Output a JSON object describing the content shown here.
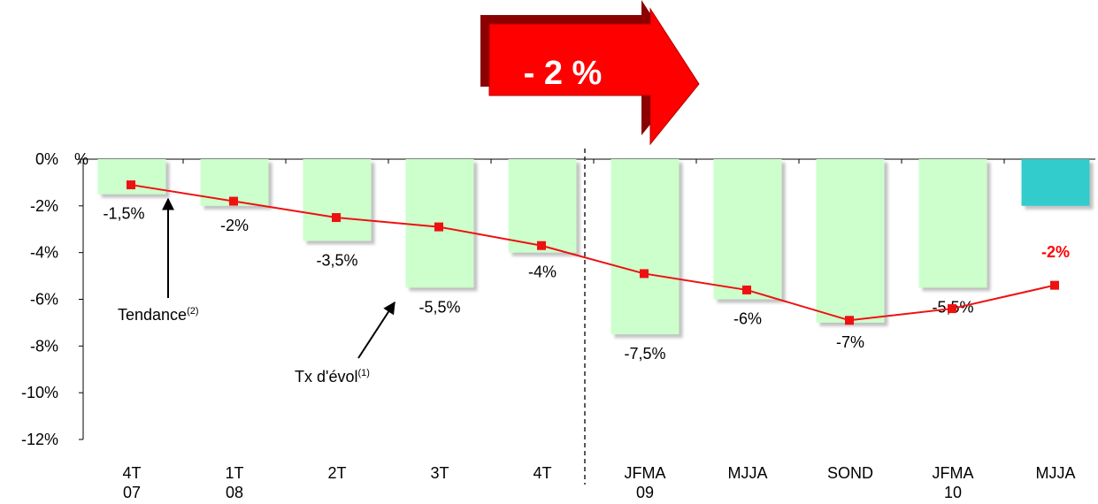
{
  "chart_data": {
    "type": "bar",
    "categories": [
      "4T 07",
      "1T 08",
      "2T",
      "3T",
      "4T",
      "JFMA 09",
      "MJJA",
      "SOND",
      "JFMA 10",
      "MJJA"
    ],
    "category_lines": [
      [
        "4T",
        "07"
      ],
      [
        "1T",
        "08"
      ],
      [
        "2T"
      ],
      [
        "3T"
      ],
      [
        "4T"
      ],
      [
        "JFMA",
        "09"
      ],
      [
        "MJJA"
      ],
      [
        "SOND"
      ],
      [
        "JFMA",
        "10"
      ],
      [
        "MJJA"
      ]
    ],
    "series": [
      {
        "values": [
          -1.5,
          -2,
          -3.5,
          -5.5,
          -4,
          -7.5,
          -6,
          -7,
          -5.5,
          -2
        ],
        "labels": [
          "-1,5%",
          "-2%",
          "-3,5%",
          "-5,5%",
          "-4%",
          "-7,5%",
          "-6%",
          "-7%",
          "-5,5%",
          "-2%"
        ],
        "color": "#ccffcc",
        "last_color": "#33cccc"
      },
      {
        "type": "line",
        "values": [
          -1.1,
          -1.8,
          -2.5,
          -2.9,
          -3.7,
          -4.9,
          -5.6,
          -6.9,
          -6.4,
          -5.4
        ],
        "color": "#ee1111"
      }
    ],
    "ylim": [
      -12,
      0
    ],
    "yticks": [
      0,
      -2,
      -4,
      -6,
      -8,
      -10,
      -12
    ],
    "ytick_labels": [
      "0%",
      "-2%",
      "-4%",
      "-6%",
      "-8%",
      "-10%",
      "-12%"
    ],
    "y_unit": "%",
    "highlight_label_color": "#ff0000",
    "separator_after_index": 4,
    "annotations": {
      "tendance": {
        "text": "Tendance",
        "sup": "(2)"
      },
      "tx_evol": {
        "text": "Tx d'évol",
        "sup": "(1)"
      }
    },
    "callout": {
      "text": "- 2 %",
      "color": "#ff0000"
    },
    "grid": false
  }
}
